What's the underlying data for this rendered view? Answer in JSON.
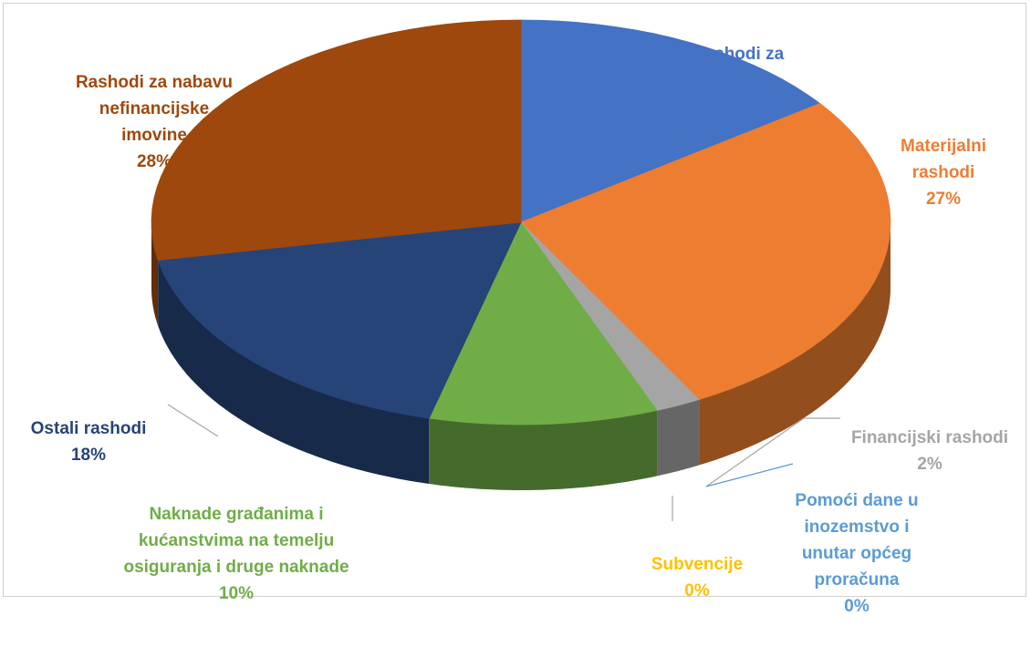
{
  "chart_data": {
    "type": "pie",
    "three_d": true,
    "legend": "none",
    "slices": [
      {
        "label": "Rashodi za zaposlene",
        "display": "Rashodi za\nzaposlene",
        "value": 15,
        "pct": "15%",
        "color": "#4472C4"
      },
      {
        "label": "Materijalni rashodi",
        "display": "Materijalni\nrashodi",
        "value": 27,
        "pct": "27%",
        "color": "#ED7D31"
      },
      {
        "label": "Financijski rashodi",
        "display": "Financijski rashodi",
        "value": 2,
        "pct": "2%",
        "color": "#A5A5A5"
      },
      {
        "label": "Pomoći dane u inozemstvo i unutar općeg proračuna",
        "display": "Pomoći dane u\ninozemstvo i\nunutar općeg\nproračuna",
        "value": 0,
        "pct": "0%",
        "color": "#5B9BD5"
      },
      {
        "label": "Subvencije",
        "display": "Subvencije",
        "value": 0,
        "pct": "0%",
        "color": "#FFC000"
      },
      {
        "label": "Naknade građanima i kućanstvima na temelju osiguranja i druge naknade",
        "display": "Naknade građanima i\nkućanstvima na temelju\nosiguranja  i druge naknade",
        "value": 10,
        "pct": "10%",
        "color": "#70AD47"
      },
      {
        "label": "Ostali rashodi",
        "display": "Ostali rashodi",
        "value": 18,
        "pct": "18%",
        "color": "#264478"
      },
      {
        "label": "Rashodi za nabavu nefinancijske imovine",
        "display": "Rashodi za nabavu\nnefinancijske\nimovine",
        "value": 28,
        "pct": "28%",
        "color": "#9E480E"
      }
    ]
  }
}
